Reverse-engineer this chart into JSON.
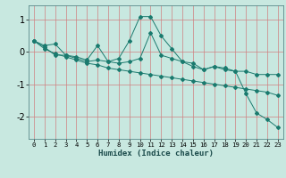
{
  "xlabel": "Humidex (Indice chaleur)",
  "background_color": "#c8e8e0",
  "line_color": "#1a7a6e",
  "xlim": [
    -0.5,
    23.5
  ],
  "ylim": [
    -2.7,
    1.45
  ],
  "yticks": [
    -2,
    -1,
    0,
    1
  ],
  "xticks": [
    0,
    1,
    2,
    3,
    4,
    5,
    6,
    7,
    8,
    9,
    10,
    11,
    12,
    13,
    14,
    15,
    16,
    17,
    18,
    19,
    20,
    21,
    22,
    23
  ],
  "series": [
    [
      0.35,
      0.2,
      0.25,
      -0.1,
      -0.15,
      -0.25,
      0.2,
      -0.3,
      -0.2,
      0.35,
      1.1,
      1.1,
      0.5,
      0.1,
      -0.3,
      -0.35,
      -0.55,
      -0.45,
      -0.5,
      -0.6,
      -1.3,
      -1.9,
      -2.1,
      -2.35
    ],
    [
      0.35,
      0.15,
      -0.1,
      -0.1,
      -0.2,
      -0.3,
      -0.25,
      -0.3,
      -0.35,
      -0.3,
      -0.2,
      0.6,
      -0.1,
      -0.2,
      -0.3,
      -0.45,
      -0.55,
      -0.45,
      -0.55,
      -0.6,
      -0.6,
      -0.7,
      -0.7,
      -0.7
    ],
    [
      0.35,
      0.1,
      -0.05,
      -0.15,
      -0.25,
      -0.35,
      -0.4,
      -0.5,
      -0.55,
      -0.6,
      -0.65,
      -0.7,
      -0.75,
      -0.8,
      -0.85,
      -0.9,
      -0.95,
      -1.0,
      -1.05,
      -1.1,
      -1.15,
      -1.2,
      -1.25,
      -1.35
    ]
  ]
}
